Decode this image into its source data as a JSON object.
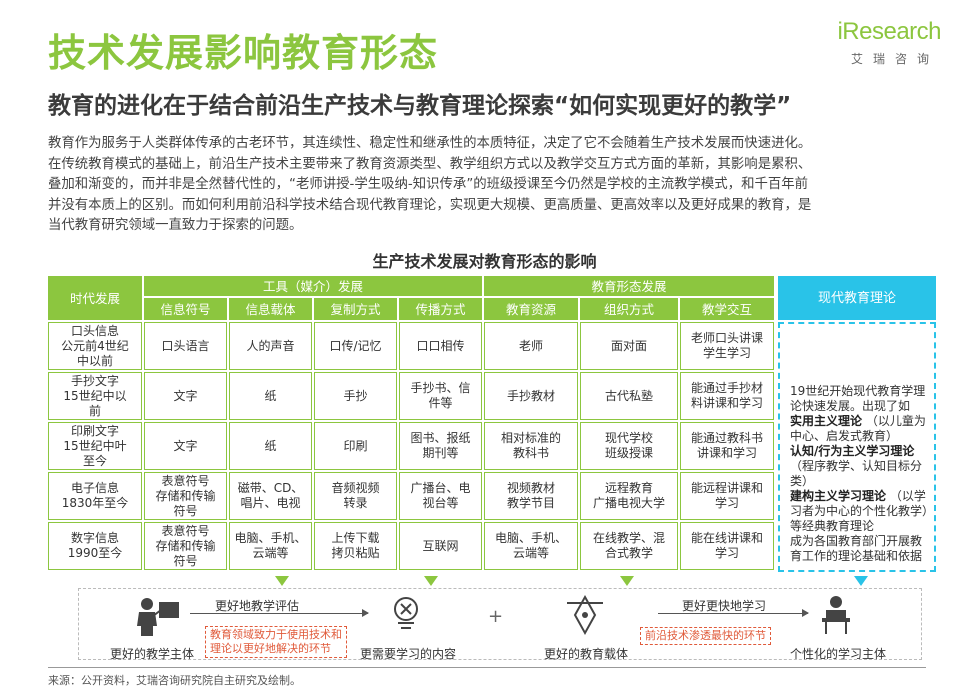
{
  "header": {
    "title": "技术发展影响教育形态",
    "subtitle": "教育的进化在于结合前沿生产技术与教育理论探索“如何实现更好的教学”",
    "logo_text": "iResearch",
    "logo_sub": "艾瑞咨询"
  },
  "intro": [
    "教育作为服务于人类群体传承的古老环节，其连续性、稳定性和继承性的本质特征，决定了它不会随着生产技术发展而快速进化。",
    "在传统教育模式的基础上，前沿生产技术主要带来了教育资源类型、教学组织方式以及教学交互方式方面的革新，其影响是累积、",
    "叠加和渐变的，而并非是全然替代性的，“老师讲授-学生吸纳-知识传承”的班级授课至今仍然是学校的主流教学模式，和千百年前",
    "并没有本质上的区别。而如何利用前沿科学技术结合现代教育理论，实现更大规模、更高质量、更高效率以及更好成果的教育，是",
    "当代教育研究领域一直致力于探索的问题。"
  ],
  "table": {
    "title": "生产技术发展对教育形态的影响",
    "era_header": "时代发展",
    "group_tools": "工具（媒介）发展",
    "group_form": "教育形态发展",
    "theory_header": "现代教育理论",
    "columns": [
      "信息符号",
      "信息载体",
      "复制方式",
      "传播方式",
      "教育资源",
      "组织方式",
      "教学交互"
    ],
    "rows": [
      {
        "era": "口头信息\n公元前4世纪\n中以前",
        "cells": [
          "口头语言",
          "人的声音",
          "口传/记忆",
          "口口相传",
          "老师",
          "面对面",
          "老师口头讲课\n学生学习"
        ]
      },
      {
        "era": "手抄文字\n15世纪中以\n前",
        "cells": [
          "文字",
          "纸",
          "手抄",
          "手抄书、信\n件等",
          "手抄教材",
          "古代私塾",
          "能通过手抄材\n料讲课和学习"
        ]
      },
      {
        "era": "印刷文字\n15世纪中叶\n至今",
        "cells": [
          "文字",
          "纸",
          "印刷",
          "图书、报纸\n期刊等",
          "相对标准的\n教科书",
          "现代学校\n班级授课",
          "能通过教科书\n讲课和学习"
        ]
      },
      {
        "era": "电子信息\n1830年至今",
        "cells": [
          "表意符号\n存储和传输\n符号",
          "磁带、CD、\n唱片、电视",
          "音频视频\n转录",
          "广播台、电\n视台等",
          "视频教材\n教学节目",
          "远程教育\n广播电视大学",
          "能远程讲课和\n学习"
        ]
      },
      {
        "era": "数字信息\n1990至今",
        "cells": [
          "表意符号\n存储和传输\n符号",
          "电脑、手机、\n云端等",
          "上传下载\n拷贝粘贴",
          "互联网",
          "电脑、手机、\n云端等",
          "在线教学、混\n合式教学",
          "能在线讲课和\n学习"
        ]
      }
    ],
    "theory": {
      "p1": "19世纪开始现代教育学理论快速发展。出现了如",
      "b1": "实用主义理论",
      "p2": "（以儿童为中心、启发式教育）",
      "b2": "认知/行为主义学习理论",
      "p3": "（程序教学、认知目标分类）",
      "b3": "建构主义学习理论",
      "p4": "（以学习者为中心的个性化教学）等经典教育理论",
      "p5": "成为各国教育部门开展教育工作的理论基础和依据"
    }
  },
  "flow": {
    "label1": "更好的教学主体",
    "label2": "更需要学习的内容",
    "label3": "更好的教育载体",
    "label4": "个性化的学习主体",
    "arrow1": "更好地教学评估",
    "arrow2": "更好更快地学习",
    "note1": "教育领域致力于使用技术和\n理论以更好地解决的环节",
    "note2": "前沿技术渗透最快的环节",
    "plus": "+"
  },
  "source": "来源：公开资料，艾瑞咨询研究院自主研究及绘制。",
  "colors": {
    "green": "#8cc63f",
    "cyan": "#29c3e8",
    "red": "#e05a3a"
  }
}
